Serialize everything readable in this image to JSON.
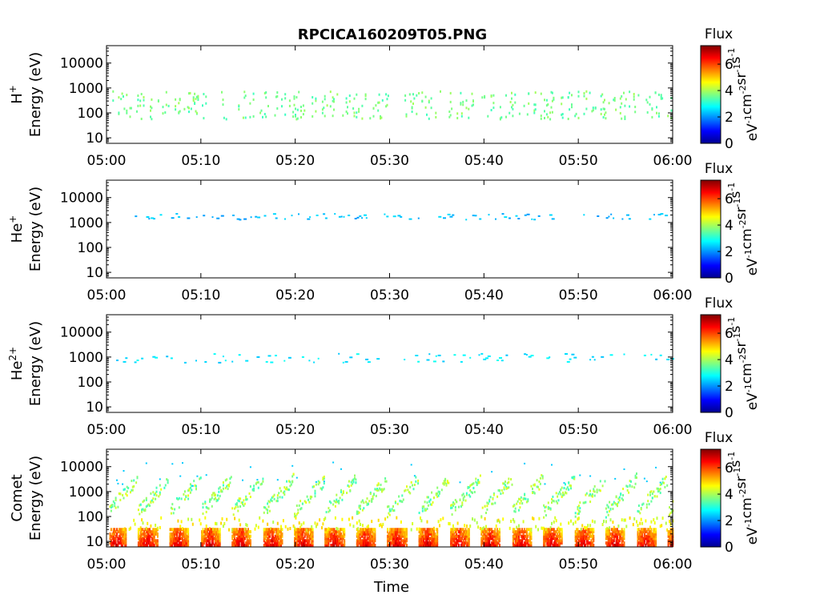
{
  "title": "RPCICA160209T05.PNG",
  "x_axis_label": "Time",
  "chart_data": [
    {
      "type": "heatmap",
      "panel": "H+",
      "species_label": "H",
      "species_sup": "+",
      "ylabel": "Energy (eV)",
      "yscale": "log",
      "ylim": [
        6,
        50000
      ],
      "yticks": [
        10,
        100,
        1000,
        10000
      ],
      "ytick_labels": [
        "10",
        "100",
        "1000",
        "10000"
      ],
      "xlim": [
        0,
        60
      ],
      "xticks": [
        0,
        10,
        20,
        30,
        40,
        50,
        60
      ],
      "xtick_labels": [
        "05:00",
        "05:10",
        "05:20",
        "05:30",
        "05:40",
        "05:50",
        "06:00"
      ],
      "pattern": "sparse",
      "flux_typical": 3.6,
      "energy_center": 200,
      "energy_spread_decades": 0.35,
      "active_start_min": 0.5,
      "colorbar": {
        "label": "Flux",
        "unit_label": "eV-1cm-2sr-1s-1",
        "range": [
          0,
          7.4
        ],
        "ticks": [
          0,
          2,
          4,
          6
        ],
        "tick_labels": [
          "0",
          "2",
          "4",
          "6"
        ]
      }
    },
    {
      "type": "heatmap",
      "panel": "He+",
      "species_label": "He",
      "species_sup": "+",
      "ylabel": "Energy (eV)",
      "yscale": "log",
      "ylim": [
        6,
        50000
      ],
      "yticks": [
        10,
        100,
        1000,
        10000
      ],
      "ytick_labels": [
        "10",
        "100",
        "1000",
        "10000"
      ],
      "xlim": [
        0,
        60
      ],
      "xticks": [
        0,
        10,
        20,
        30,
        40,
        50,
        60
      ],
      "xtick_labels": [
        "05:00",
        "05:10",
        "05:20",
        "05:30",
        "05:40",
        "05:50",
        "06:00"
      ],
      "pattern": "line",
      "flux_typical": 2.3,
      "energy_center": 1700,
      "energy_spread_decades": 0.06,
      "active_start_min": 3.0,
      "colorbar": {
        "label": "Flux",
        "unit_label": "eV-1cm-2sr-1s-1",
        "range": [
          0,
          7.4
        ],
        "ticks": [
          0,
          2,
          4,
          6
        ],
        "tick_labels": [
          "0",
          "2",
          "4",
          "6"
        ]
      }
    },
    {
      "type": "heatmap",
      "panel": "He2+",
      "species_label": "He",
      "species_sup": "2+",
      "ylabel": "Energy (eV)",
      "yscale": "log",
      "ylim": [
        6,
        50000
      ],
      "yticks": [
        10,
        100,
        1000,
        10000
      ],
      "ytick_labels": [
        "10",
        "100",
        "1000",
        "10000"
      ],
      "xlim": [
        0,
        60
      ],
      "xticks": [
        0,
        10,
        20,
        30,
        40,
        50,
        60
      ],
      "xtick_labels": [
        "05:00",
        "05:10",
        "05:20",
        "05:30",
        "05:40",
        "05:50",
        "06:00"
      ],
      "pattern": "line",
      "flux_typical": 2.6,
      "energy_center": 900,
      "energy_spread_decades": 0.09,
      "active_start_min": 0.3,
      "colorbar": {
        "label": "Flux",
        "unit_label": "eV-1cm-2sr-1s-1",
        "range": [
          0,
          7.4
        ],
        "ticks": [
          0,
          2,
          4,
          6
        ],
        "tick_labels": [
          "0",
          "2",
          "4",
          "6"
        ]
      }
    },
    {
      "type": "heatmap",
      "panel": "Comet",
      "species_label": "Comet",
      "species_sup": "",
      "ylabel": "Energy (eV)",
      "yscale": "log",
      "ylim": [
        6,
        50000
      ],
      "yticks": [
        10,
        100,
        1000,
        10000
      ],
      "ytick_labels": [
        "10",
        "100",
        "1000",
        "10000"
      ],
      "xlim": [
        0,
        60
      ],
      "xticks": [
        0,
        10,
        20,
        30,
        40,
        50,
        60
      ],
      "xtick_labels": [
        "05:00",
        "05:10",
        "05:20",
        "05:30",
        "05:40",
        "05:50",
        "06:00"
      ],
      "pattern": "periodic",
      "period_min": 3.3,
      "burst_energy_range": [
        7,
        30
      ],
      "burst_flux_peak": 6.8,
      "dispersed_flux": 3.8,
      "colorbar": {
        "label": "Flux",
        "unit_label": "eV-1cm-2sr-1s-1",
        "range": [
          0,
          7.4
        ],
        "ticks": [
          0,
          2,
          4,
          6
        ],
        "tick_labels": [
          "0",
          "2",
          "4",
          "6"
        ]
      }
    }
  ],
  "colormap": "jet"
}
